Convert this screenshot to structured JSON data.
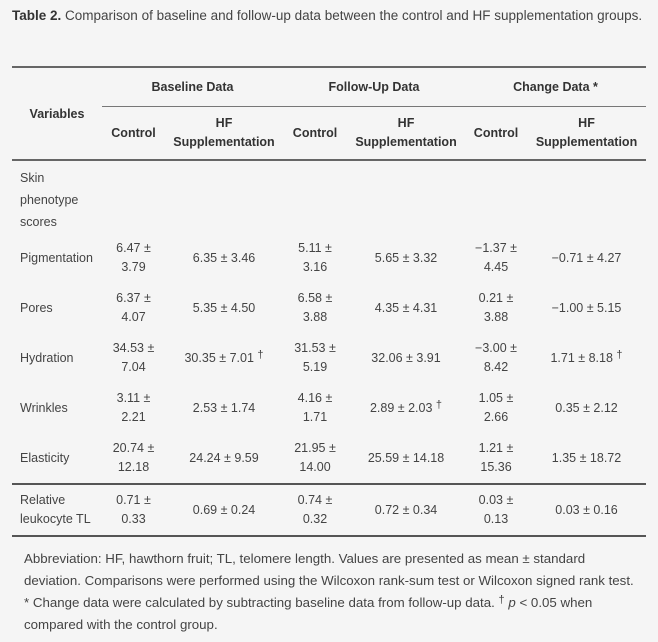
{
  "caption": {
    "label": "Table 2.",
    "text": " Comparison of baseline and follow-up data between the control and HF supplementation groups."
  },
  "table": {
    "variables_header": "Variables",
    "groups": [
      "Baseline Data",
      "Follow-Up Data",
      "Change Data *"
    ],
    "subheaders": {
      "control": "Control",
      "hf_line1": "HF",
      "hf_line2": "Supplementation"
    },
    "section_label": "Skin phenotype scores",
    "rows": [
      {
        "name": "Pigmentation",
        "cells": [
          {
            "v": "6.47 ± 3.79",
            "s": ""
          },
          {
            "v": "6.35 ± 3.46",
            "s": ""
          },
          {
            "v": "5.11 ± 3.16",
            "s": ""
          },
          {
            "v": "5.65 ± 3.32",
            "s": ""
          },
          {
            "v": "−1.37 ± 4.45",
            "s": ""
          },
          {
            "v": "−0.71 ± 4.27",
            "s": ""
          }
        ]
      },
      {
        "name": "Pores",
        "cells": [
          {
            "v": "6.37 ± 4.07",
            "s": ""
          },
          {
            "v": "5.35 ± 4.50",
            "s": ""
          },
          {
            "v": "6.58 ± 3.88",
            "s": ""
          },
          {
            "v": "4.35 ± 4.31",
            "s": ""
          },
          {
            "v": "0.21 ± 3.88",
            "s": ""
          },
          {
            "v": "−1.00 ± 5.15",
            "s": ""
          }
        ]
      },
      {
        "name": "Hydration",
        "cells": [
          {
            "v": "34.53 ± 7.04",
            "s": ""
          },
          {
            "v": "30.35 ± 7.01",
            "s": "†"
          },
          {
            "v": "31.53 ± 5.19",
            "s": ""
          },
          {
            "v": "32.06 ± 3.91",
            "s": ""
          },
          {
            "v": "−3.00 ± 8.42",
            "s": ""
          },
          {
            "v": "1.71 ± 8.18",
            "s": "†"
          }
        ]
      },
      {
        "name": "Wrinkles",
        "cells": [
          {
            "v": "3.11 ± 2.21",
            "s": ""
          },
          {
            "v": "2.53 ± 1.74",
            "s": ""
          },
          {
            "v": "4.16 ± 1.71",
            "s": ""
          },
          {
            "v": "2.89 ± 2.03",
            "s": "†"
          },
          {
            "v": "1.05 ± 2.66",
            "s": ""
          },
          {
            "v": "0.35 ± 2.12",
            "s": ""
          }
        ]
      },
      {
        "name": "Elasticity",
        "cells": [
          {
            "v": "20.74 ± 12.18",
            "s": ""
          },
          {
            "v": "24.24 ± 9.59",
            "s": ""
          },
          {
            "v": "21.95 ± 14.00",
            "s": ""
          },
          {
            "v": "25.59 ± 14.18",
            "s": ""
          },
          {
            "v": "1.21 ± 15.36",
            "s": ""
          },
          {
            "v": "1.35 ± 18.72",
            "s": ""
          }
        ]
      },
      {
        "name": "Relative leukocyte TL",
        "cells": [
          {
            "v": "0.71 ± 0.33",
            "s": ""
          },
          {
            "v": "0.69 ± 0.24",
            "s": ""
          },
          {
            "v": "0.74 ± 0.32",
            "s": ""
          },
          {
            "v": "0.72 ± 0.34",
            "s": ""
          },
          {
            "v": "0.03 ± 0.13",
            "s": ""
          },
          {
            "v": "0.03 ± 0.16",
            "s": ""
          }
        ]
      }
    ]
  },
  "footnote": {
    "text": "Abbreviation: HF, hawthorn fruit; TL, telomere length. Values are presented as mean ± standard deviation. Comparisons were performed using the Wilcoxon rank-sum test or Wilcoxon signed rank test. * Change data were calculated by subtracting baseline data from follow-up data. ",
    "dagger": "†",
    "p": "p",
    "rest": " < 0.05 when compared with the control group."
  }
}
